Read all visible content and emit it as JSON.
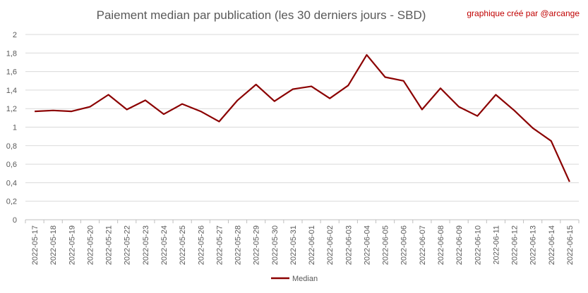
{
  "chart_data": {
    "type": "line",
    "title": "Paiement median par publication (les 30 derniers jours - SBD)",
    "credit": "graphique créé par @arcange",
    "ylim": [
      0,
      2
    ],
    "yticks": [
      "0",
      "0,2",
      "0,4",
      "0,6",
      "0,8",
      "1",
      "1,2",
      "1,4",
      "1,6",
      "1,8",
      "2"
    ],
    "grid": true,
    "legend_position": "bottom",
    "categories": [
      "2022-05-17",
      "2022-05-18",
      "2022-05-19",
      "2022-05-20",
      "2022-05-21",
      "2022-05-22",
      "2022-05-23",
      "2022-05-24",
      "2022-05-25",
      "2022-05-26",
      "2022-05-27",
      "2022-05-28",
      "2022-05-29",
      "2022-05-30",
      "2022-05-31",
      "2022-06-01",
      "2022-06-02",
      "2022-06-03",
      "2022-06-04",
      "2022-06-05",
      "2022-06-06",
      "2022-06-07",
      "2022-06-08",
      "2022-06-09",
      "2022-06-10",
      "2022-06-11",
      "2022-06-12",
      "2022-06-13",
      "2022-06-14",
      "2022-06-15"
    ],
    "series": [
      {
        "name": "Median",
        "color": "#8b0000",
        "values": [
          1.17,
          1.18,
          1.17,
          1.22,
          1.35,
          1.19,
          1.29,
          1.14,
          1.25,
          1.17,
          1.06,
          1.29,
          1.46,
          1.28,
          1.41,
          1.44,
          1.31,
          1.45,
          1.78,
          1.54,
          1.5,
          1.19,
          1.42,
          1.22,
          1.12,
          1.35,
          1.18,
          0.99,
          0.85,
          0.41
        ]
      }
    ]
  }
}
